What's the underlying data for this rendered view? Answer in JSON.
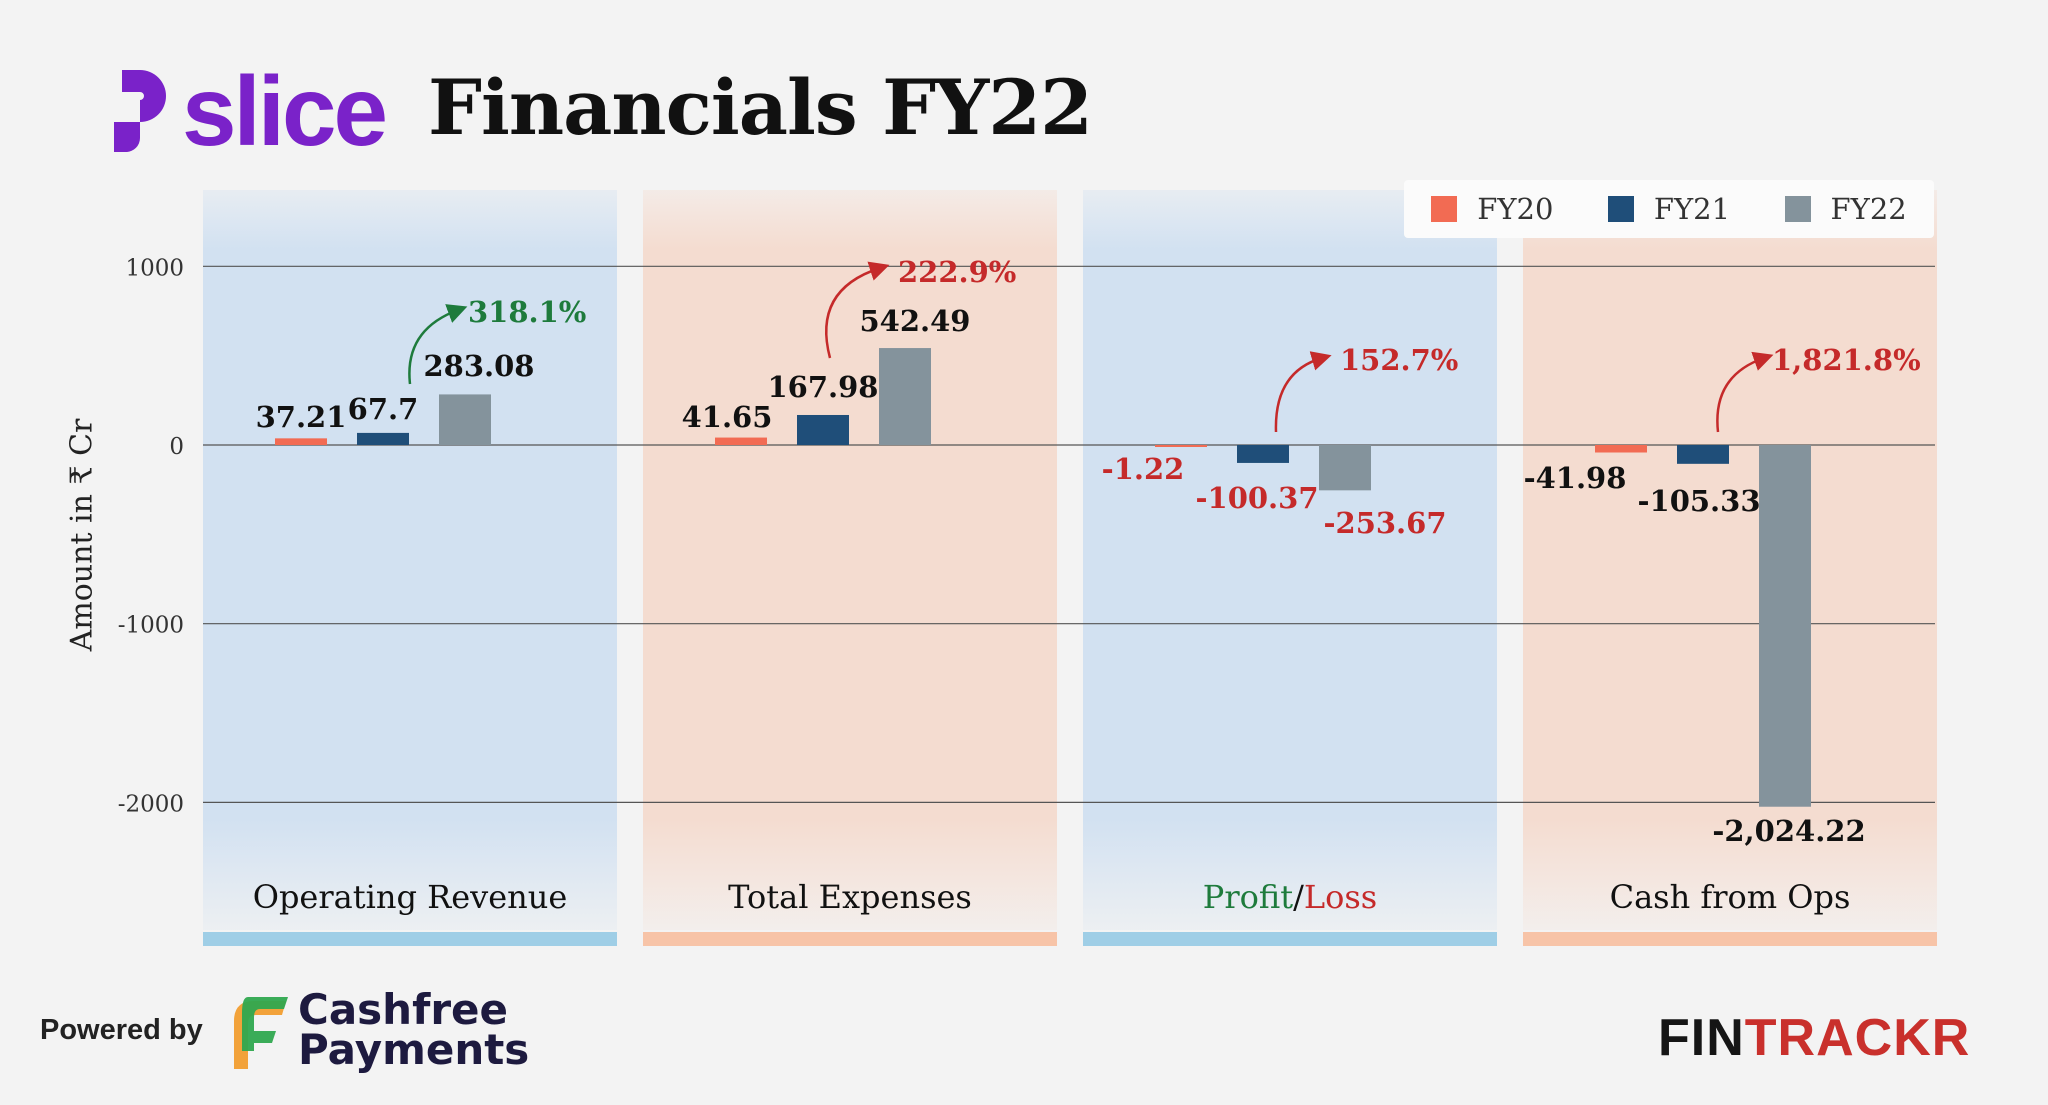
{
  "header": {
    "brand": "slice",
    "title": "Financials FY22"
  },
  "footer": {
    "powered_by": "Powered by",
    "cashfree_line1": "Cashfree",
    "cashfree_line2": "Payments",
    "fintrackr_left": "FIN",
    "fintrackr_right": "TRACKR"
  },
  "colors": {
    "fy20": "#f26b53",
    "fy21": "#1f4e79",
    "fy22": "#84939c",
    "panel_blue": "#d2e1f1",
    "panel_peach": "#f4dcd0",
    "strip_blue": "#9fcee6",
    "strip_peach": "#f7c4a8",
    "positive": "#1e7b3c",
    "negative": "#c52a2a",
    "brand": "#7a22c9"
  },
  "chart_data": {
    "type": "bar",
    "ylabel": "Amount in ₹ Cr",
    "yticks": [
      1000,
      0,
      -1000,
      -2000
    ],
    "ylim": [
      -2500,
      1500
    ],
    "legend": [
      "FY20",
      "FY21",
      "FY22"
    ],
    "legend_position": "top-right",
    "groups": [
      {
        "label": "Operating Revenue",
        "values": [
          37.21,
          67.7,
          283.08
        ],
        "value_labels": [
          "37.21",
          "67.7",
          "283.08"
        ],
        "growth": "318.1%",
        "growth_color": "positive",
        "label_color": "default"
      },
      {
        "label": "Total Expenses",
        "values": [
          41.65,
          167.98,
          542.49
        ],
        "value_labels": [
          "41.65",
          "167.98",
          "542.49"
        ],
        "growth": "222.9%",
        "growth_color": "negative",
        "label_color": "default"
      },
      {
        "label_parts": [
          "Profit",
          "/",
          "Loss"
        ],
        "values": [
          -1.22,
          -100.37,
          -253.67
        ],
        "value_labels": [
          "-1.22",
          "-100.37",
          "-253.67"
        ],
        "growth": "152.7%",
        "growth_color": "negative",
        "label_color": "negative"
      },
      {
        "label": "Cash from Ops",
        "values": [
          -41.98,
          -105.33,
          -2024.22
        ],
        "value_labels": [
          "-41.98",
          "-105.33",
          "-2,024.22"
        ],
        "growth": "1,821.8%",
        "growth_color": "negative",
        "label_color": "default"
      }
    ]
  }
}
